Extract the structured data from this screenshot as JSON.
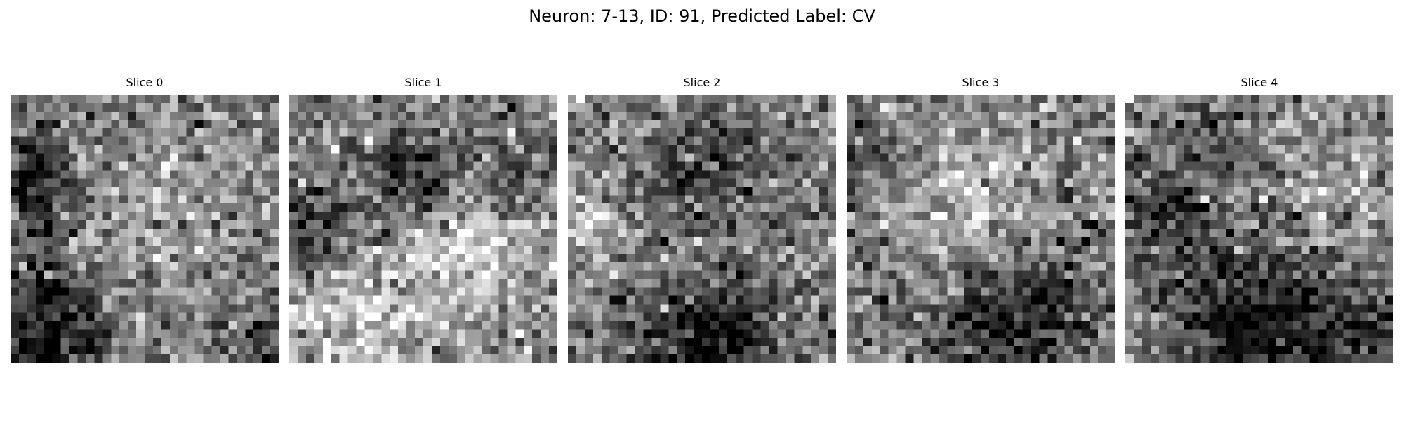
{
  "figure": {
    "title": "Neuron: 7-13, ID: 91, Predicted Label: CV",
    "colormap": "gray",
    "grid_size": 32,
    "panels": [
      {
        "label": "Slice 0",
        "image": "grayscale-noise-slice-0"
      },
      {
        "label": "Slice 1",
        "image": "grayscale-noise-slice-1"
      },
      {
        "label": "Slice 2",
        "image": "grayscale-noise-slice-2"
      },
      {
        "label": "Slice 3",
        "image": "grayscale-noise-slice-3"
      },
      {
        "label": "Slice 4",
        "image": "grayscale-noise-slice-4"
      }
    ]
  }
}
